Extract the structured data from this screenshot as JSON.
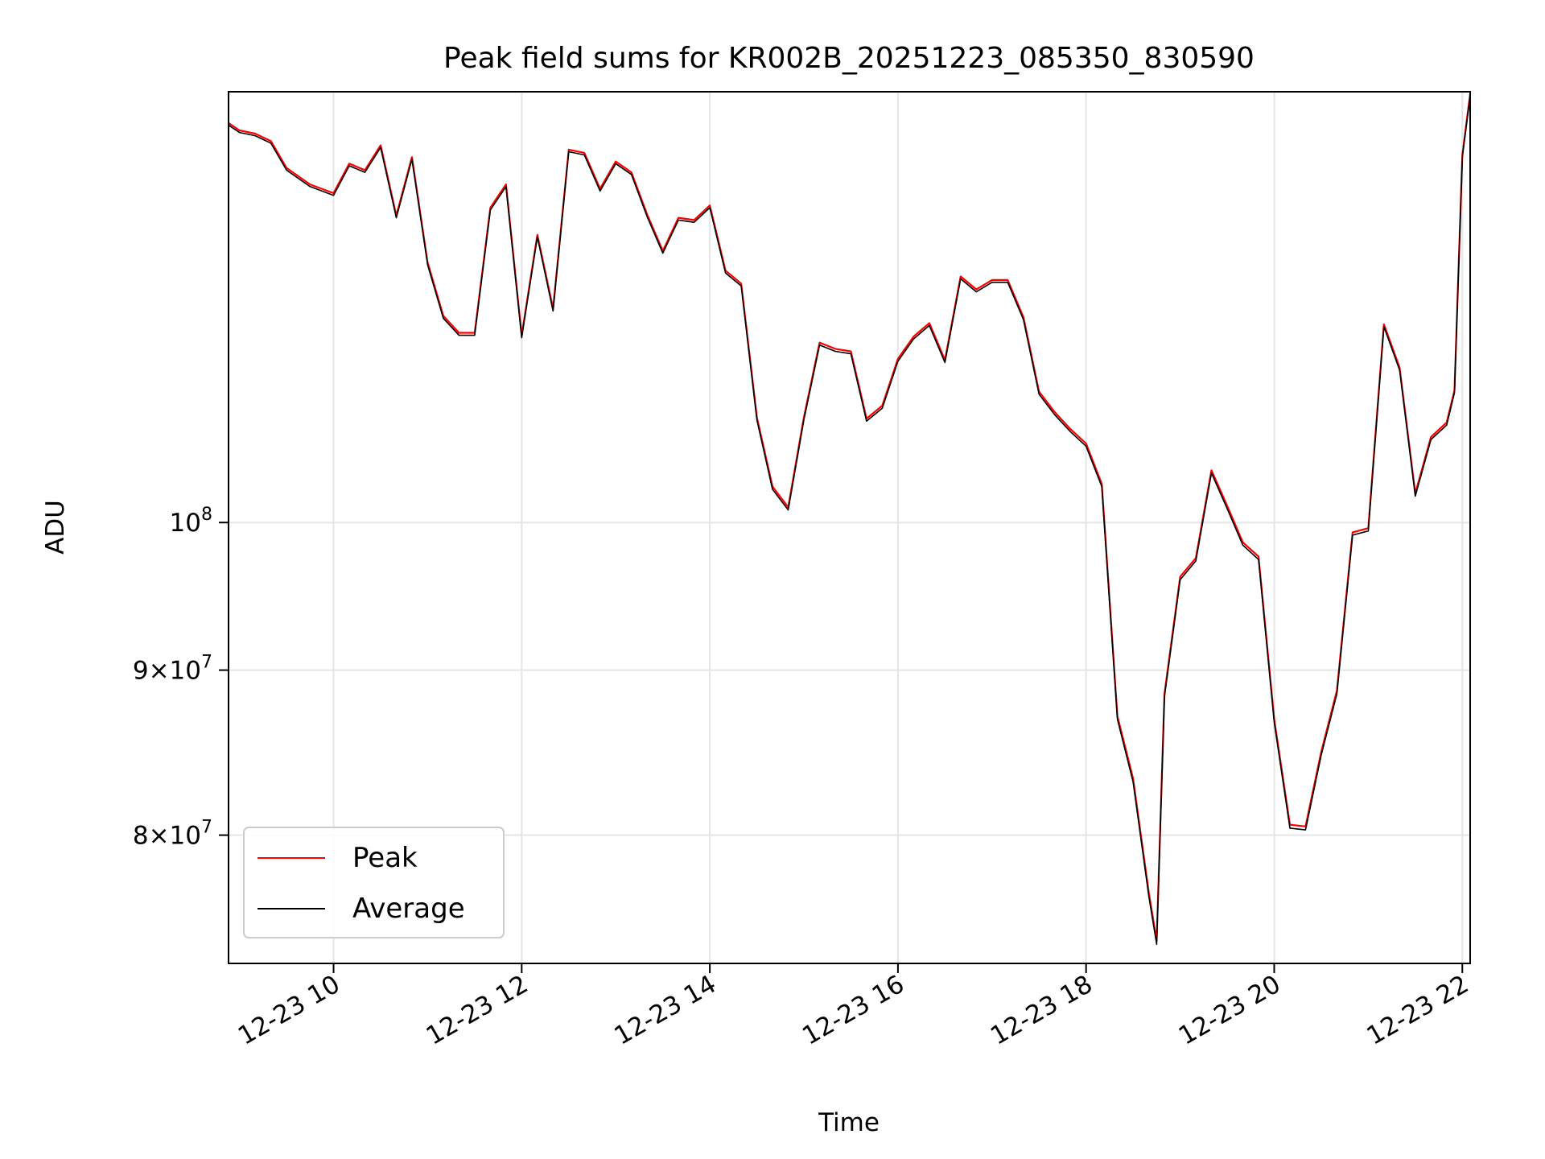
{
  "chart_data": {
    "type": "line",
    "title": "Peak field sums for KR002B_20251223_085350_830590",
    "xlabel": "Time",
    "ylabel": "ADU",
    "yscale": "log",
    "grid": true,
    "legend_position": "lower-left",
    "xlim": [
      "2025-12-23T08:53",
      "2025-12-23T22:05"
    ],
    "ylim": [
      73000000,
      136000000
    ],
    "x_ticks": [
      {
        "value": "2025-12-23T10:00",
        "label": "12-23 10"
      },
      {
        "value": "2025-12-23T12:00",
        "label": "12-23 12"
      },
      {
        "value": "2025-12-23T14:00",
        "label": "12-23 14"
      },
      {
        "value": "2025-12-23T16:00",
        "label": "12-23 16"
      },
      {
        "value": "2025-12-23T18:00",
        "label": "12-23 18"
      },
      {
        "value": "2025-12-23T20:00",
        "label": "12-23 20"
      },
      {
        "value": "2025-12-23T22:00",
        "label": "12-23 22"
      }
    ],
    "y_ticks": [
      {
        "value": 80000000,
        "mant": "8",
        "exp": "7"
      },
      {
        "value": 90000000,
        "mant": "9",
        "exp": "7"
      },
      {
        "value": 100000000,
        "mant": "",
        "exp": "8"
      }
    ],
    "legend": [
      {
        "label": "Peak",
        "color": "#ff0000"
      },
      {
        "label": "Average",
        "color": "#000000"
      }
    ],
    "x": [
      "2025-12-23T08:53",
      "2025-12-23T09:00",
      "2025-12-23T09:10",
      "2025-12-23T09:20",
      "2025-12-23T09:30",
      "2025-12-23T09:45",
      "2025-12-23T10:00",
      "2025-12-23T10:10",
      "2025-12-23T10:20",
      "2025-12-23T10:30",
      "2025-12-23T10:40",
      "2025-12-23T10:50",
      "2025-12-23T11:00",
      "2025-12-23T11:10",
      "2025-12-23T11:20",
      "2025-12-23T11:30",
      "2025-12-23T11:40",
      "2025-12-23T11:50",
      "2025-12-23T12:00",
      "2025-12-23T12:10",
      "2025-12-23T12:20",
      "2025-12-23T12:30",
      "2025-12-23T12:40",
      "2025-12-23T12:50",
      "2025-12-23T13:00",
      "2025-12-23T13:10",
      "2025-12-23T13:20",
      "2025-12-23T13:30",
      "2025-12-23T13:40",
      "2025-12-23T13:50",
      "2025-12-23T14:00",
      "2025-12-23T14:10",
      "2025-12-23T14:20",
      "2025-12-23T14:30",
      "2025-12-23T14:40",
      "2025-12-23T14:50",
      "2025-12-23T15:00",
      "2025-12-23T15:10",
      "2025-12-23T15:20",
      "2025-12-23T15:30",
      "2025-12-23T15:40",
      "2025-12-23T15:50",
      "2025-12-23T16:00",
      "2025-12-23T16:10",
      "2025-12-23T16:20",
      "2025-12-23T16:30",
      "2025-12-23T16:40",
      "2025-12-23T16:50",
      "2025-12-23T17:00",
      "2025-12-23T17:10",
      "2025-12-23T17:20",
      "2025-12-23T17:30",
      "2025-12-23T17:40",
      "2025-12-23T17:50",
      "2025-12-23T18:00",
      "2025-12-23T18:10",
      "2025-12-23T18:20",
      "2025-12-23T18:30",
      "2025-12-23T18:40",
      "2025-12-23T18:45",
      "2025-12-23T18:50",
      "2025-12-23T19:00",
      "2025-12-23T19:10",
      "2025-12-23T19:20",
      "2025-12-23T19:30",
      "2025-12-23T19:40",
      "2025-12-23T19:50",
      "2025-12-23T20:00",
      "2025-12-23T20:10",
      "2025-12-23T20:20",
      "2025-12-23T20:30",
      "2025-12-23T20:40",
      "2025-12-23T20:50",
      "2025-12-23T21:00",
      "2025-12-23T21:10",
      "2025-12-23T21:20",
      "2025-12-23T21:30",
      "2025-12-23T21:40",
      "2025-12-23T21:50",
      "2025-12-23T21:55",
      "2025-12-23T22:00",
      "2025-12-23T22:05"
    ],
    "series": [
      {
        "name": "Peak",
        "color": "#ff0000",
        "values": [
          133000000,
          132300000,
          132000000,
          131300000,
          128800000,
          127300000,
          126500000,
          129200000,
          128600000,
          130900000,
          124500000,
          129800000,
          120400000,
          115900000,
          114500000,
          114500000,
          125200000,
          127300000,
          114300000,
          122800000,
          116500000,
          130500000,
          130200000,
          126900000,
          129400000,
          128400000,
          124600000,
          121400000,
          124300000,
          124100000,
          125400000,
          119700000,
          118600000,
          107800000,
          102600000,
          101100000,
          107800000,
          113700000,
          113200000,
          113000000,
          107700000,
          108700000,
          112400000,
          114200000,
          115300000,
          112300000,
          119200000,
          118100000,
          118900000,
          118900000,
          115800000,
          109800000,
          108200000,
          106900000,
          105800000,
          102800000,
          87100000,
          83300000,
          76800000,
          74200000,
          88500000,
          96200000,
          97500000,
          103800000,
          101200000,
          98600000,
          97600000,
          86900000,
          80600000,
          80500000,
          84900000,
          88700000,
          99300000,
          99600000,
          115200000,
          111700000,
          102100000,
          106300000,
          107400000,
          109900000,
          130000000,
          135800000
        ]
      },
      {
        "name": "Average",
        "color": "#000000",
        "values": [
          132800000,
          132100000,
          131800000,
          131100000,
          128600000,
          127100000,
          126300000,
          129000000,
          128400000,
          130700000,
          124300000,
          129600000,
          120200000,
          115700000,
          114300000,
          114300000,
          125000000,
          127100000,
          114100000,
          122600000,
          116300000,
          130300000,
          130000000,
          126700000,
          129200000,
          128200000,
          124400000,
          121200000,
          124100000,
          123900000,
          125200000,
          119500000,
          118400000,
          107600000,
          102400000,
          100900000,
          107600000,
          113500000,
          113000000,
          112800000,
          107500000,
          108500000,
          112200000,
          114000000,
          115100000,
          112100000,
          119000000,
          117900000,
          118700000,
          118700000,
          115600000,
          109600000,
          108000000,
          106700000,
          105600000,
          102600000,
          86900000,
          83100000,
          76600000,
          74000000,
          88300000,
          96000000,
          97300000,
          103600000,
          101000000,
          98400000,
          97400000,
          86700000,
          80400000,
          80300000,
          84700000,
          88500000,
          99100000,
          99400000,
          115000000,
          111500000,
          101900000,
          106100000,
          107200000,
          109700000,
          129800000,
          135600000
        ]
      }
    ]
  }
}
